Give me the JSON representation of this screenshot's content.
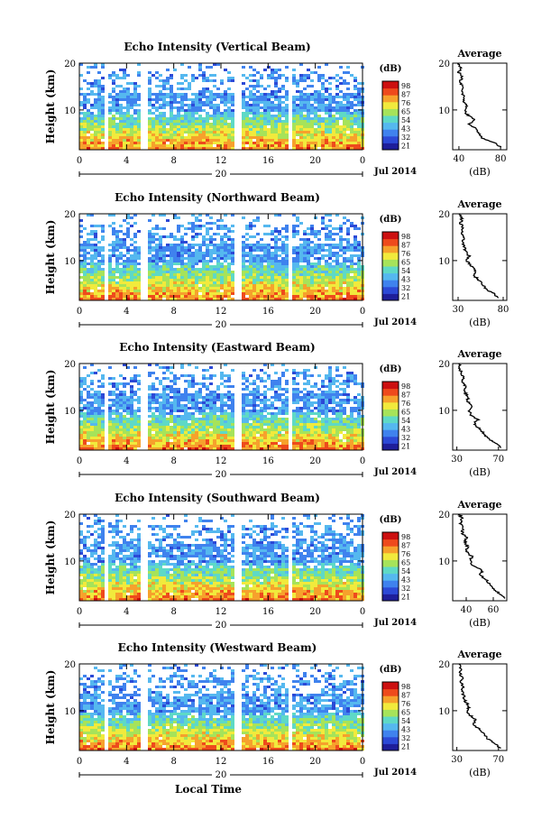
{
  "chart_data": {
    "type": "heatmap",
    "xlabel": "Local Time",
    "time_ticks": [
      "0",
      "4",
      "8",
      "12",
      "16",
      "20",
      "0"
    ],
    "date_label": "20",
    "month_label": "Jul 2014",
    "y_axis_label": "Height (km)",
    "height_range_km": [
      1.5,
      20
    ],
    "height_ticks": [
      "10",
      "20"
    ],
    "colorbar_unit": "(dB)",
    "colorbar_levels": [
      "21",
      "32",
      "43",
      "54",
      "65",
      "76",
      "87",
      "98"
    ],
    "profile_title": "Average",
    "profile_xlabel": "(dB)",
    "colors": [
      "#1e1e9a",
      "#2c49d6",
      "#3f82ee",
      "#55b8ef",
      "#5ed9c6",
      "#a6e35a",
      "#f1ea3c",
      "#f6a12c",
      "#ee4a1c",
      "#cc1010"
    ],
    "beams": [
      {
        "title": "Echo Intensity (Vertical Beam)",
        "profile_ticks": [
          "40",
          "80"
        ],
        "profile_range": [
          34,
          86
        ],
        "profile": [
          [
            2,
            80
          ],
          [
            3,
            74
          ],
          [
            4,
            62
          ],
          [
            5,
            60
          ],
          [
            6,
            56
          ],
          [
            7,
            50
          ],
          [
            8,
            55
          ],
          [
            9,
            48
          ],
          [
            10,
            45
          ],
          [
            11,
            48
          ],
          [
            12,
            44
          ],
          [
            13,
            45
          ],
          [
            14,
            42
          ],
          [
            15,
            44
          ],
          [
            16,
            41
          ],
          [
            17,
            43
          ],
          [
            18,
            40
          ],
          [
            19,
            42
          ],
          [
            20,
            39
          ]
        ]
      },
      {
        "title": "Echo Intensity (Northward Beam)",
        "profile_ticks": [
          "30",
          "80"
        ],
        "profile_range": [
          24,
          84
        ],
        "profile": [
          [
            2,
            74
          ],
          [
            3,
            70
          ],
          [
            4,
            60
          ],
          [
            5,
            57
          ],
          [
            6,
            52
          ],
          [
            7,
            47
          ],
          [
            8,
            50
          ],
          [
            9,
            43
          ],
          [
            10,
            40
          ],
          [
            11,
            42
          ],
          [
            12,
            38
          ],
          [
            13,
            37
          ],
          [
            14,
            35
          ],
          [
            15,
            36
          ],
          [
            16,
            34
          ],
          [
            17,
            35
          ],
          [
            18,
            33
          ],
          [
            19,
            34
          ],
          [
            20,
            32
          ]
        ]
      },
      {
        "title": "Echo Intensity (Eastward Beam)",
        "profile_ticks": [
          "30",
          "70"
        ],
        "profile_range": [
          26,
          78
        ],
        "profile": [
          [
            2,
            72
          ],
          [
            3,
            68
          ],
          [
            4,
            60
          ],
          [
            5,
            56
          ],
          [
            6,
            52
          ],
          [
            7,
            46
          ],
          [
            8,
            50
          ],
          [
            9,
            44
          ],
          [
            10,
            42
          ],
          [
            11,
            44
          ],
          [
            12,
            40
          ],
          [
            13,
            41
          ],
          [
            14,
            37
          ],
          [
            15,
            39
          ],
          [
            16,
            35
          ],
          [
            17,
            36
          ],
          [
            18,
            34
          ],
          [
            19,
            33
          ],
          [
            20,
            32
          ]
        ]
      },
      {
        "title": "Echo Intensity (Southward Beam)",
        "profile_ticks": [
          "40",
          "60"
        ],
        "profile_range": [
          30,
          70
        ],
        "profile": [
          [
            2,
            68
          ],
          [
            3,
            65
          ],
          [
            4,
            60
          ],
          [
            5,
            57
          ],
          [
            6,
            55
          ],
          [
            7,
            50
          ],
          [
            8,
            52
          ],
          [
            9,
            45
          ],
          [
            10,
            43
          ],
          [
            11,
            44
          ],
          [
            12,
            40
          ],
          [
            13,
            41
          ],
          [
            14,
            39
          ],
          [
            15,
            40
          ],
          [
            16,
            37
          ],
          [
            17,
            38
          ],
          [
            18,
            36
          ],
          [
            19,
            37
          ],
          [
            20,
            35
          ]
        ]
      },
      {
        "title": "Echo Intensity (Westward Beam)",
        "profile_ticks": [
          "30",
          "70"
        ],
        "profile_range": [
          26,
          78
        ],
        "profile": [
          [
            2,
            72
          ],
          [
            3,
            67
          ],
          [
            4,
            60
          ],
          [
            5,
            56
          ],
          [
            6,
            52
          ],
          [
            7,
            46
          ],
          [
            8,
            48
          ],
          [
            9,
            43
          ],
          [
            10,
            40
          ],
          [
            11,
            42
          ],
          [
            12,
            38
          ],
          [
            13,
            37
          ],
          [
            14,
            35
          ],
          [
            15,
            36
          ],
          [
            16,
            34
          ],
          [
            17,
            35
          ],
          [
            18,
            33
          ],
          [
            19,
            34
          ],
          [
            20,
            32
          ]
        ]
      }
    ]
  }
}
